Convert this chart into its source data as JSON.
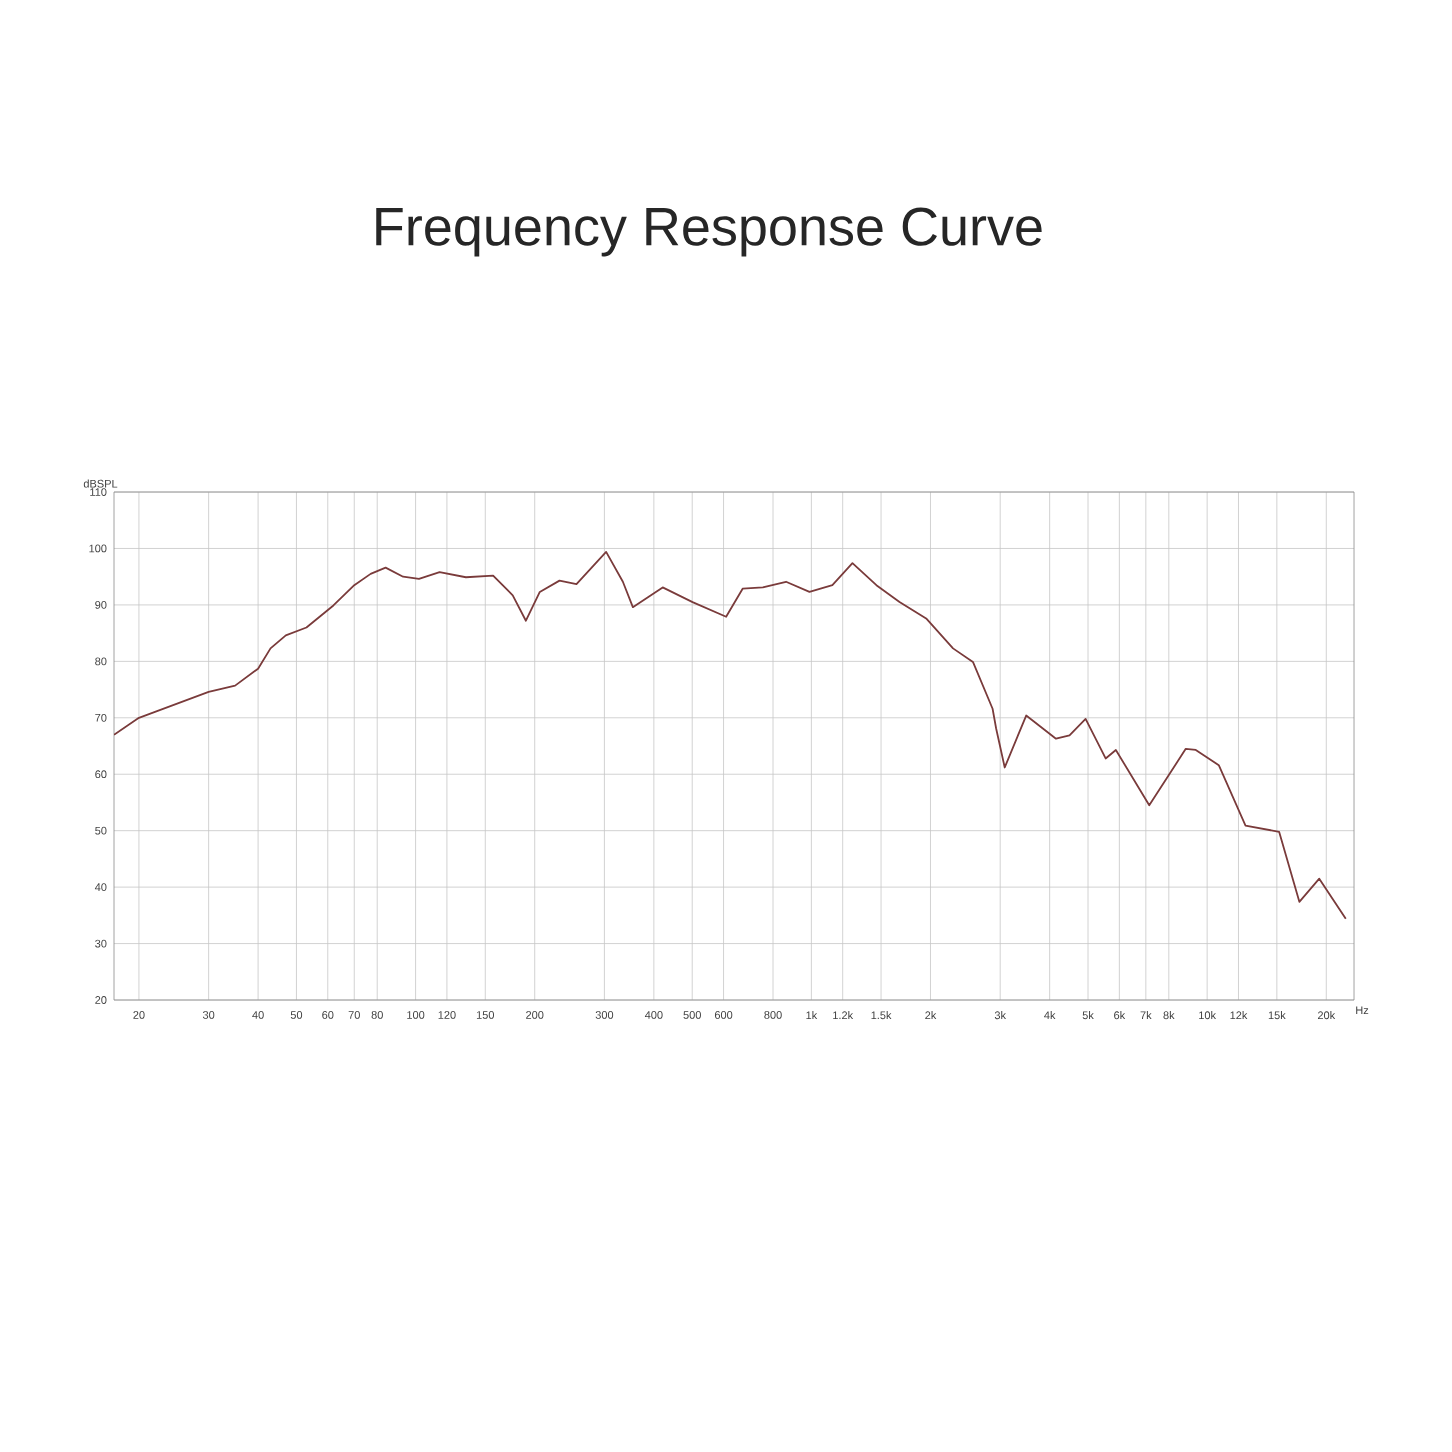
{
  "chart_data": {
    "type": "line",
    "title": "Frequency Response Curve",
    "xlabel": "Hz",
    "ylabel": "dBSPL",
    "log": "x",
    "grid": true,
    "xlim": [
      17.3,
      23500
    ],
    "ylim": [
      20,
      110
    ],
    "yticks": [
      20,
      30,
      40,
      50,
      60,
      70,
      80,
      90,
      100,
      110
    ],
    "xticks": [
      20,
      30,
      40,
      50,
      60,
      70,
      80,
      100,
      120,
      150,
      200,
      300,
      400,
      500,
      600,
      800,
      {
        "value": 1000,
        "label": "1k"
      },
      {
        "value": 1200,
        "label": "1.2k"
      },
      {
        "value": 1500,
        "label": "1.5k"
      },
      {
        "value": 2000,
        "label": "2k"
      },
      {
        "value": 3000,
        "label": "3k"
      },
      {
        "value": 4000,
        "label": "4k"
      },
      {
        "value": 5000,
        "label": "5k"
      },
      {
        "value": 6000,
        "label": "6k"
      },
      {
        "value": 7000,
        "label": "7k"
      },
      {
        "value": 8000,
        "label": "8k"
      },
      {
        "value": 10000,
        "label": "10k"
      },
      {
        "value": 12000,
        "label": "12k"
      },
      {
        "value": 15000,
        "label": "15k"
      },
      {
        "value": 20000,
        "label": "20k"
      }
    ],
    "x": [
      17.3,
      20,
      30,
      35,
      40,
      43,
      47,
      53,
      62,
      70,
      77,
      84,
      93,
      102,
      115,
      134,
      157,
      176,
      190,
      206,
      231,
      255,
      303,
      334,
      354,
      421,
      501,
      609,
      671,
      754,
      863,
      989,
      1130,
      1270,
      1460,
      1670,
      1950,
      2280,
      2560,
      2870,
      2930,
      3080,
      3490,
      4150,
      4490,
      4930,
      5540,
      5880,
      7140,
      8830,
      9360,
      10700,
      12500,
      15200,
      17100,
      19200,
      22400
    ],
    "series": [
      {
        "color": "#7a3b3b",
        "values": [
          67,
          70,
          74.6,
          75.7,
          78.7,
          82.3,
          84.6,
          86,
          89.9,
          93.5,
          95.5,
          96.6,
          95,
          94.6,
          95.8,
          94.9,
          95.2,
          91.7,
          87.2,
          92.3,
          94.3,
          93.7,
          99.4,
          94.1,
          89.6,
          93.1,
          90.5,
          87.9,
          92.9,
          93.1,
          94.1,
          92.3,
          93.5,
          97.4,
          93.5,
          90.5,
          87.6,
          82.3,
          79.9,
          71.6,
          68.1,
          61.2,
          70.4,
          66.3,
          66.9,
          69.8,
          62.8,
          64.3,
          54.5,
          64.5,
          64.3,
          61.6,
          50.9,
          49.8,
          37.4,
          41.5,
          34.4
        ]
      }
    ]
  }
}
